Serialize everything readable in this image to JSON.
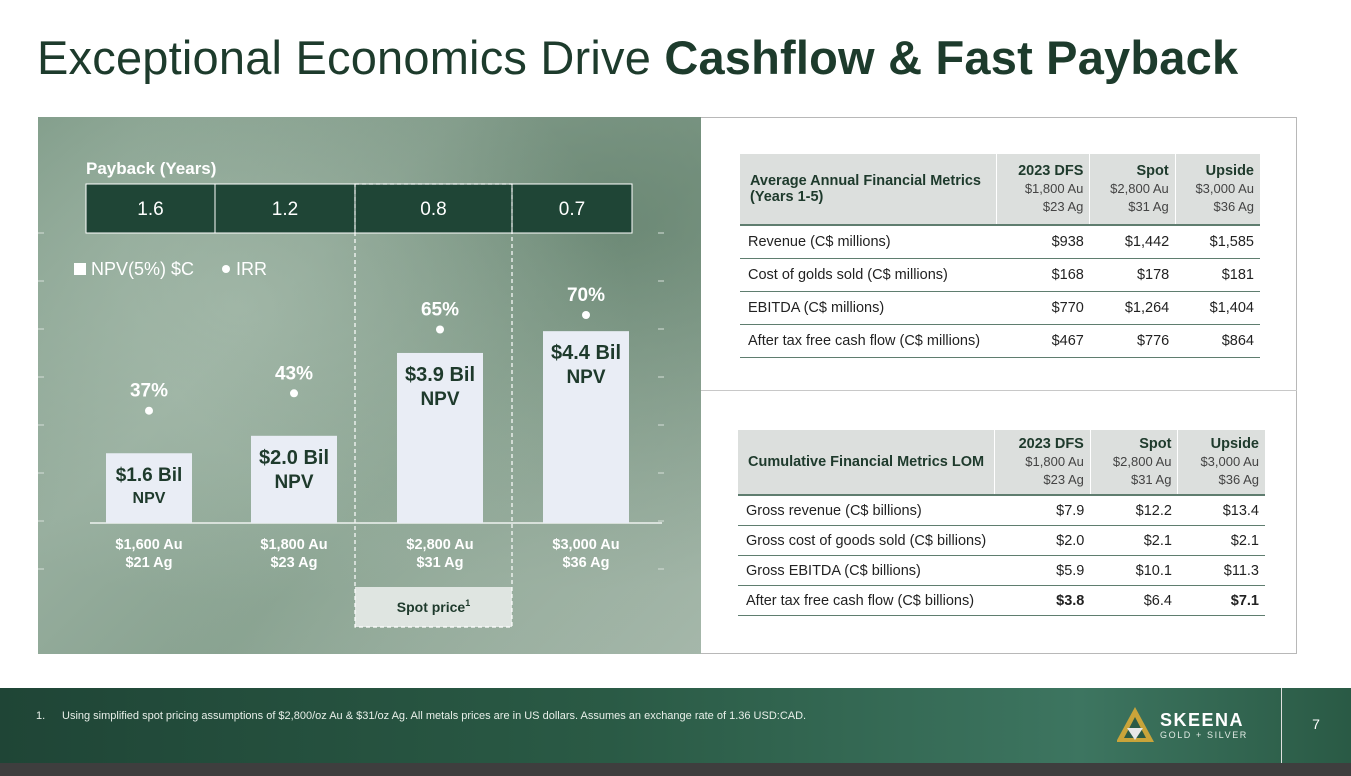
{
  "title": {
    "regular": "Exceptional Economics Drive",
    "bold": "Cashflow & Fast Payback"
  },
  "chart_data": {
    "type": "bar",
    "payback_label": "Payback (Years)",
    "payback": [
      "1.6",
      "1.2",
      "0.8",
      "0.7"
    ],
    "legend": {
      "bar": "NPV(5%) $C",
      "dot": "IRR"
    },
    "categories": [
      [
        "$1,600 Au",
        "$21 Ag"
      ],
      [
        "$1,800 Au",
        "$23 Ag"
      ],
      [
        "$2,800 Au",
        "$31 Ag"
      ],
      [
        "$3,000 Au",
        "$36 Ag"
      ]
    ],
    "series": [
      {
        "name": "NPV(5%) $C",
        "values": [
          1.6,
          2.0,
          3.9,
          4.4
        ],
        "labels": [
          "$1.6 Bil",
          "$2.0 Bil",
          "$3.9 Bil",
          "$4.4 Bil"
        ],
        "sublabel": "NPV"
      },
      {
        "name": "IRR",
        "values": [
          37,
          43,
          65,
          70
        ],
        "labels": [
          "37%",
          "43%",
          "65%",
          "70%"
        ]
      }
    ],
    "highlight": {
      "index": 2,
      "label": "Spot price",
      "superscript": "1"
    },
    "colors": {
      "bar": "#e9edf5",
      "header_bg": "#1f4536",
      "dot": "#ffffff"
    }
  },
  "annual": {
    "header": "Average Annual Financial Metrics (Years 1-5)",
    "columns": [
      {
        "name": "2023 DFS",
        "au": "$1,800 Au",
        "ag": "$23 Ag"
      },
      {
        "name": "Spot",
        "au": "$2,800 Au",
        "ag": "$31 Ag"
      },
      {
        "name": "Upside",
        "au": "$3,000 Au",
        "ag": "$36 Ag"
      }
    ],
    "rows": [
      {
        "label": "Revenue (C$ millions)",
        "values": [
          "$938",
          "$1,442",
          "$1,585"
        ]
      },
      {
        "label": "Cost of golds sold (C$ millions)",
        "values": [
          "$168",
          "$178",
          "$181"
        ]
      },
      {
        "label": "EBITDA (C$ millions)",
        "values": [
          "$770",
          "$1,264",
          "$1,404"
        ]
      },
      {
        "label": "After tax free cash flow (C$ millions)",
        "values": [
          "$467",
          "$776",
          "$864"
        ]
      }
    ]
  },
  "cumulative": {
    "header": "Cumulative Financial Metrics LOM",
    "columns": [
      {
        "name": "2023 DFS",
        "au": "$1,800 Au",
        "ag": "$23 Ag"
      },
      {
        "name": "Spot",
        "au": "$2,800 Au",
        "ag": "$31 Ag"
      },
      {
        "name": "Upside",
        "au": "$3,000 Au",
        "ag": "$36 Ag"
      }
    ],
    "rows": [
      {
        "label": "Gross revenue (C$ billions)",
        "values": [
          "$7.9",
          "$12.2",
          "$13.4"
        ]
      },
      {
        "label": "Gross cost of goods sold (C$ billions)",
        "values": [
          "$2.0",
          "$2.1",
          "$2.1"
        ]
      },
      {
        "label": "Gross EBITDA (C$ billions)",
        "values": [
          "$5.9",
          "$10.1",
          "$11.3"
        ]
      },
      {
        "label": "After tax free cash flow (C$ billions)",
        "values": [
          "$3.8",
          "$6.4",
          "$7.1"
        ]
      }
    ]
  },
  "footer": {
    "footnote_number": "1.",
    "footnote": "Using simplified spot pricing assumptions of $2,800/oz Au & $31/oz Ag. All metals prices are in US dollars. Assumes an exchange rate of 1.36 USD:CAD.",
    "logo_name": "SKEENA",
    "logo_sub": "GOLD + SILVER",
    "page_number": "7"
  }
}
